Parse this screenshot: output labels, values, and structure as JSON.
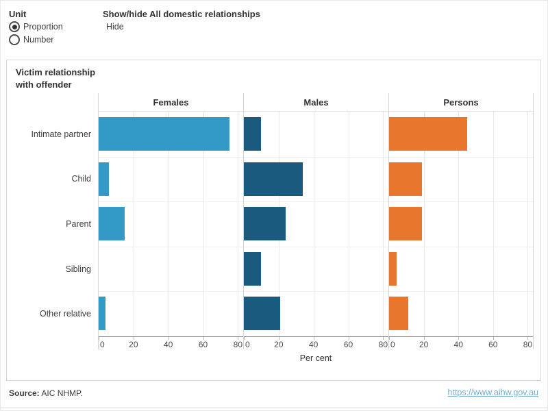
{
  "controls": {
    "unit": {
      "label": "Unit",
      "options": [
        {
          "label": "Proportion",
          "selected": true
        },
        {
          "label": "Number",
          "selected": false
        }
      ]
    },
    "show_hide": {
      "label": "Show/hide All domestic relationships",
      "value": "Hide"
    }
  },
  "chart_data": {
    "type": "bar",
    "orientation": "horizontal",
    "title": "Victim relationship with offender",
    "categories": [
      "Intimate partner",
      "Child",
      "Parent",
      "Sibling",
      "Other relative"
    ],
    "panels": [
      {
        "name": "Females",
        "color": "#3399c7",
        "values": [
          75,
          6,
          15,
          0,
          4
        ]
      },
      {
        "name": "Males",
        "color": "#1a5a7e",
        "values": [
          10,
          34,
          24,
          10,
          21
        ]
      },
      {
        "name": "Persons",
        "color": "#e8762d",
        "values": [
          45,
          19,
          19,
          4.5,
          11
        ]
      }
    ],
    "xlabel": "Per cent",
    "xlim": [
      0,
      83
    ],
    "xticks": [
      0,
      20,
      40,
      60,
      80
    ],
    "grid": "vertical-light",
    "unit_suffix": "%"
  },
  "footer": {
    "source_prefix": "Source:",
    "source_text": " AIC NHMP.",
    "link": "https://www.aihw.gov.au",
    "link_color": "#74b0cd"
  }
}
